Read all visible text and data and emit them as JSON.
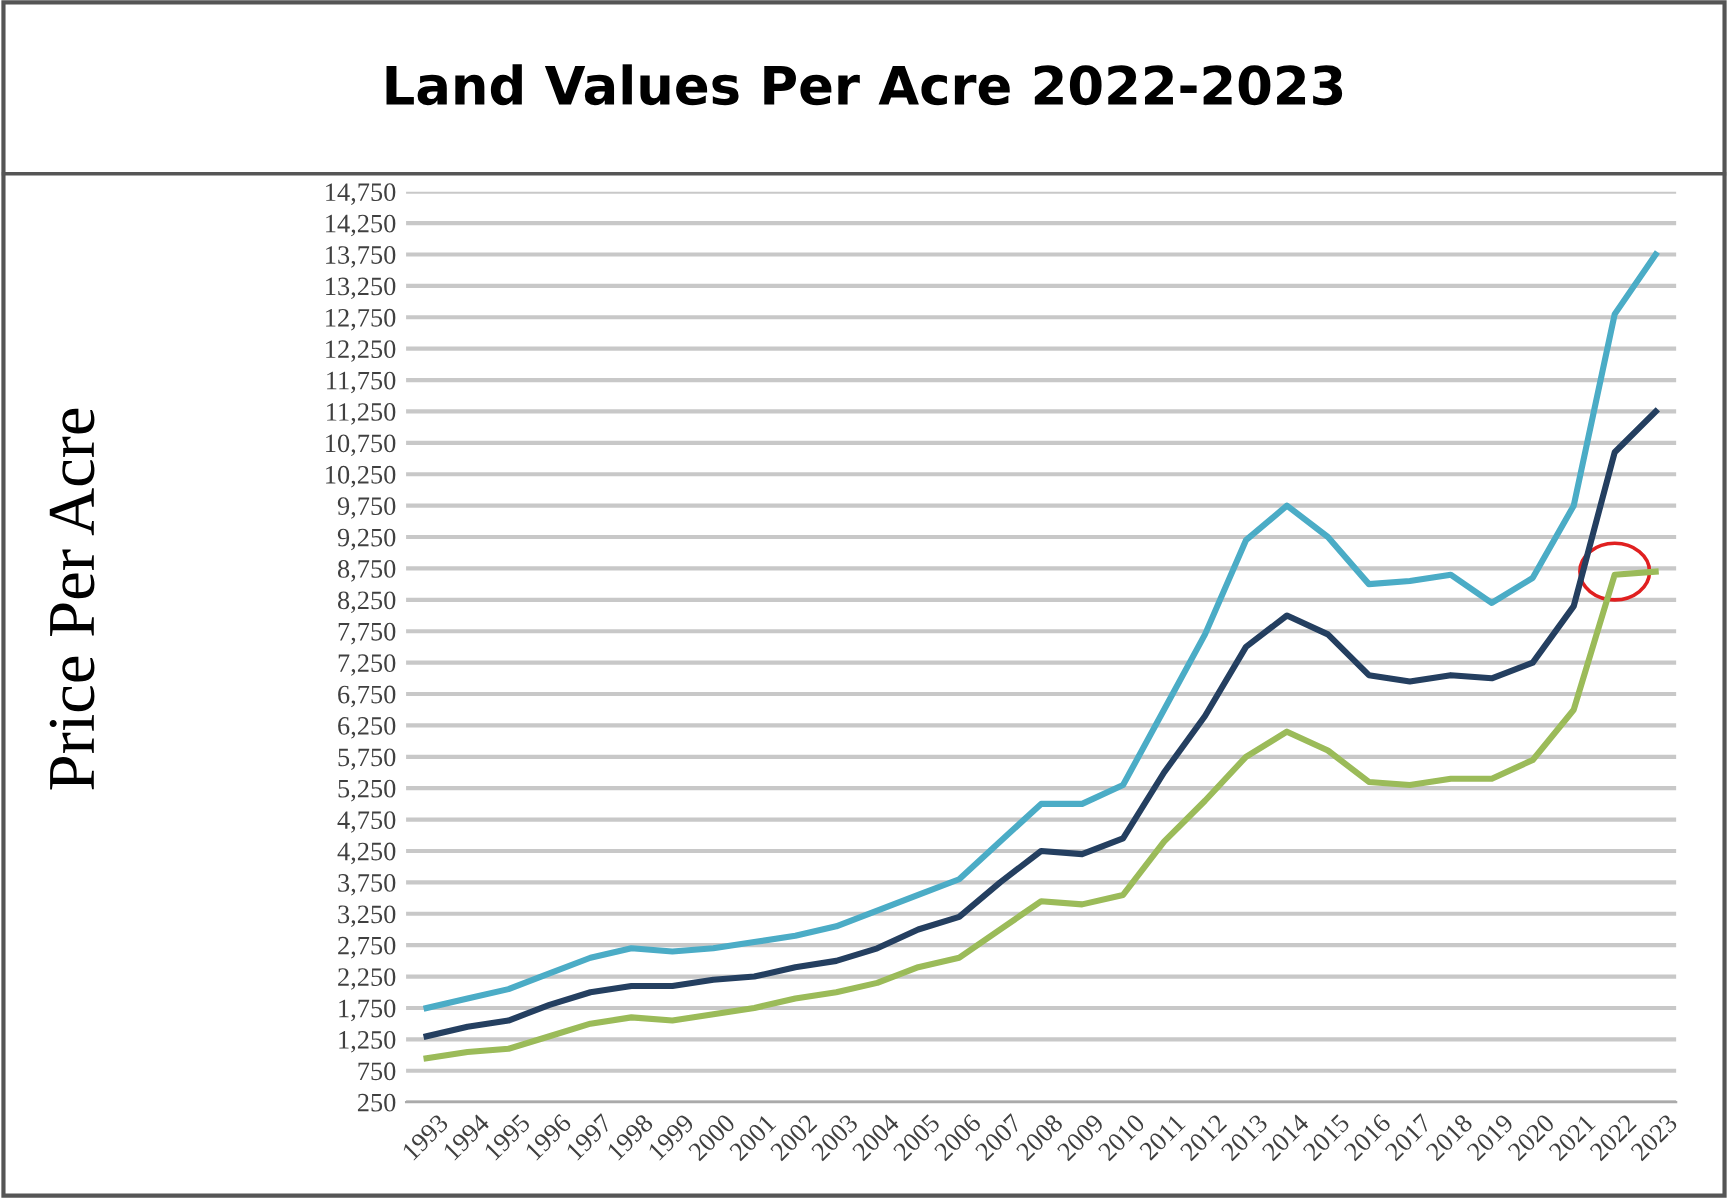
{
  "chart_data": {
    "type": "line",
    "title": "Land Values Per Acre 2022-2023",
    "ylabel": "Price Per Acre",
    "categories": [
      "1993",
      "1994",
      "1995",
      "1996",
      "1997",
      "1998",
      "1999",
      "2000",
      "2001",
      "2002",
      "2003",
      "2004",
      "2005",
      "2006",
      "2007",
      "2008",
      "2009",
      "2010",
      "2011",
      "2012",
      "2013",
      "2014",
      "2015",
      "2016",
      "2017",
      "2018",
      "2019",
      "2020",
      "2021",
      "2022",
      "2023"
    ],
    "series": [
      {
        "color": "#4bacc6",
        "values": [
          1750,
          1900,
          2050,
          2300,
          2550,
          2700,
          2650,
          2700,
          2800,
          2900,
          3050,
          3300,
          3550,
          3800,
          4400,
          5000,
          5000,
          5300,
          6500,
          7700,
          9200,
          9750,
          9250,
          8500,
          8550,
          8650,
          8200,
          8600,
          9750,
          12800,
          13750
        ]
      },
      {
        "color": "#243f60",
        "values": [
          1300,
          1450,
          1550,
          1800,
          2000,
          2100,
          2100,
          2200,
          2250,
          2400,
          2500,
          2700,
          3000,
          3200,
          3750,
          4250,
          4200,
          4450,
          5500,
          6400,
          7500,
          8000,
          7700,
          7050,
          6950,
          7050,
          7000,
          7250,
          8150,
          10600,
          11250
        ]
      },
      {
        "color": "#9bbb59",
        "values": [
          950,
          1050,
          1100,
          1300,
          1500,
          1600,
          1550,
          1650,
          1750,
          1900,
          2000,
          2150,
          2400,
          2550,
          3000,
          3450,
          3400,
          3550,
          4400,
          5050,
          5750,
          6150,
          5850,
          5350,
          5300,
          5400,
          5400,
          5700,
          6500,
          8650,
          8700
        ]
      }
    ],
    "ylim": [
      250,
      14750
    ],
    "yticks": [
      {
        "value": 250,
        "label": "250"
      },
      {
        "value": 750,
        "label": "750"
      },
      {
        "value": 1250,
        "label": "1,250"
      },
      {
        "value": 1750,
        "label": "1,750"
      },
      {
        "value": 2250,
        "label": "2,250"
      },
      {
        "value": 2750,
        "label": "2,750"
      },
      {
        "value": 3250,
        "label": "3,250"
      },
      {
        "value": 3750,
        "label": "3,750"
      },
      {
        "value": 4250,
        "label": "4,250"
      },
      {
        "value": 4750,
        "label": "4,750"
      },
      {
        "value": 5250,
        "label": "5,250"
      },
      {
        "value": 5750,
        "label": "5,750"
      },
      {
        "value": 6250,
        "label": "6,250"
      },
      {
        "value": 6750,
        "label": "6,750"
      },
      {
        "value": 7250,
        "label": "7,250"
      },
      {
        "value": 7750,
        "label": "7,750"
      },
      {
        "value": 8250,
        "label": "8,250"
      },
      {
        "value": 8750,
        "label": "8,750"
      },
      {
        "value": 9250,
        "label": "9,250"
      },
      {
        "value": 9750,
        "label": "9,750"
      },
      {
        "value": 10250,
        "label": "10,250"
      },
      {
        "value": 10750,
        "label": "10,750"
      },
      {
        "value": 11250,
        "label": "11,250"
      },
      {
        "value": 11750,
        "label": "11,750"
      },
      {
        "value": 12250,
        "label": "12,250"
      },
      {
        "value": 12750,
        "label": "12,750"
      },
      {
        "value": 13250,
        "label": "13,250"
      },
      {
        "value": 13750,
        "label": "13,750"
      },
      {
        "value": 14250,
        "label": "14,250"
      },
      {
        "value": 14750,
        "label": "14,750"
      }
    ],
    "grid": "y",
    "marker": "none",
    "line_style": "solid",
    "legend": false
  }
}
